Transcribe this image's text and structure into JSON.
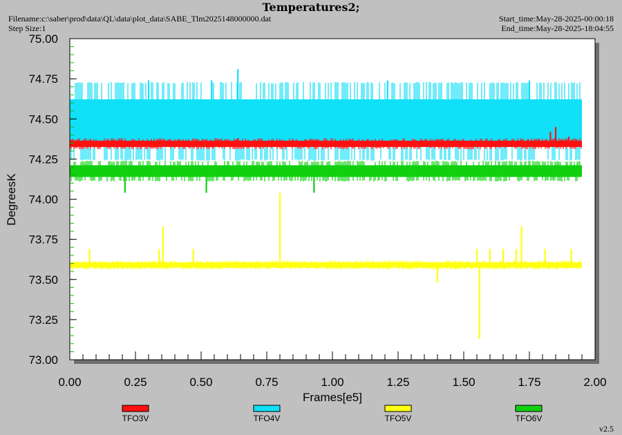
{
  "header": {
    "title": "Temperatures2;",
    "filename": "Filename:c:\\saber\\prod\\data\\QL\\data\\plot_data\\SABE_Tlm2025148000000.dat",
    "step_size": "Step Size:1",
    "start_time": "Start_time:May-28-2025-00:00:18",
    "end_time": "End_time:May-28-2025-18:04:55"
  },
  "version": "v2.5",
  "colors": {
    "TFO3V": "#ff1010",
    "TFO4V": "#10e0f8",
    "TFO5V": "#ffff10",
    "TFO6V": "#10d010"
  },
  "chart_data": {
    "type": "line",
    "title": "Temperatures2;",
    "xlabel": "Frames[e5]",
    "ylabel": "DegreesK",
    "xlim": [
      0.0,
      2.0
    ],
    "ylim": [
      73.0,
      75.0
    ],
    "x_ticks": [
      "0.00",
      "0.25",
      "0.50",
      "0.75",
      "1.00",
      "1.25",
      "1.50",
      "1.75",
      "2.00"
    ],
    "y_ticks": [
      "75.00",
      "74.75",
      "74.50",
      "74.25",
      "74.00",
      "73.75",
      "73.50",
      "73.25",
      "73.00"
    ],
    "x_extent": [
      0.0,
      1.95
    ],
    "legend_position": "bottom",
    "series": [
      {
        "name": "TFO3V",
        "band": [
          74.31,
          74.38
        ],
        "typical": 74.34,
        "spikes": [
          [
            1.85,
            74.45
          ],
          [
            1.83,
            74.42
          ],
          [
            0.64,
            74.38
          ],
          [
            1.9,
            74.39
          ]
        ]
      },
      {
        "name": "TFO4V",
        "band": [
          74.24,
          74.73
        ],
        "typical": 74.48,
        "spikes": [
          [
            0.64,
            74.81
          ],
          [
            0.54,
            74.74
          ],
          [
            1.21,
            74.74
          ],
          [
            1.75,
            74.74
          ],
          [
            0.3,
            74.74
          ]
        ]
      },
      {
        "name": "TFO5V",
        "band": [
          73.56,
          73.62
        ],
        "typical": 73.59,
        "spikes": [
          [
            0.075,
            73.69
          ],
          [
            0.34,
            73.69
          ],
          [
            0.355,
            73.83
          ],
          [
            0.47,
            73.69
          ],
          [
            0.8,
            74.04
          ],
          [
            1.4,
            73.48
          ],
          [
            1.56,
            73.13
          ],
          [
            1.55,
            73.69
          ],
          [
            1.6,
            73.69
          ],
          [
            1.65,
            73.69
          ],
          [
            1.7,
            73.69
          ],
          [
            1.72,
            73.83
          ],
          [
            1.81,
            73.69
          ],
          [
            1.91,
            73.69
          ]
        ]
      },
      {
        "name": "TFO6V",
        "band": [
          74.11,
          74.24
        ],
        "typical": 74.17,
        "spikes": [
          [
            0.21,
            74.04
          ],
          [
            0.52,
            74.04
          ],
          [
            0.93,
            74.04
          ]
        ]
      }
    ]
  }
}
